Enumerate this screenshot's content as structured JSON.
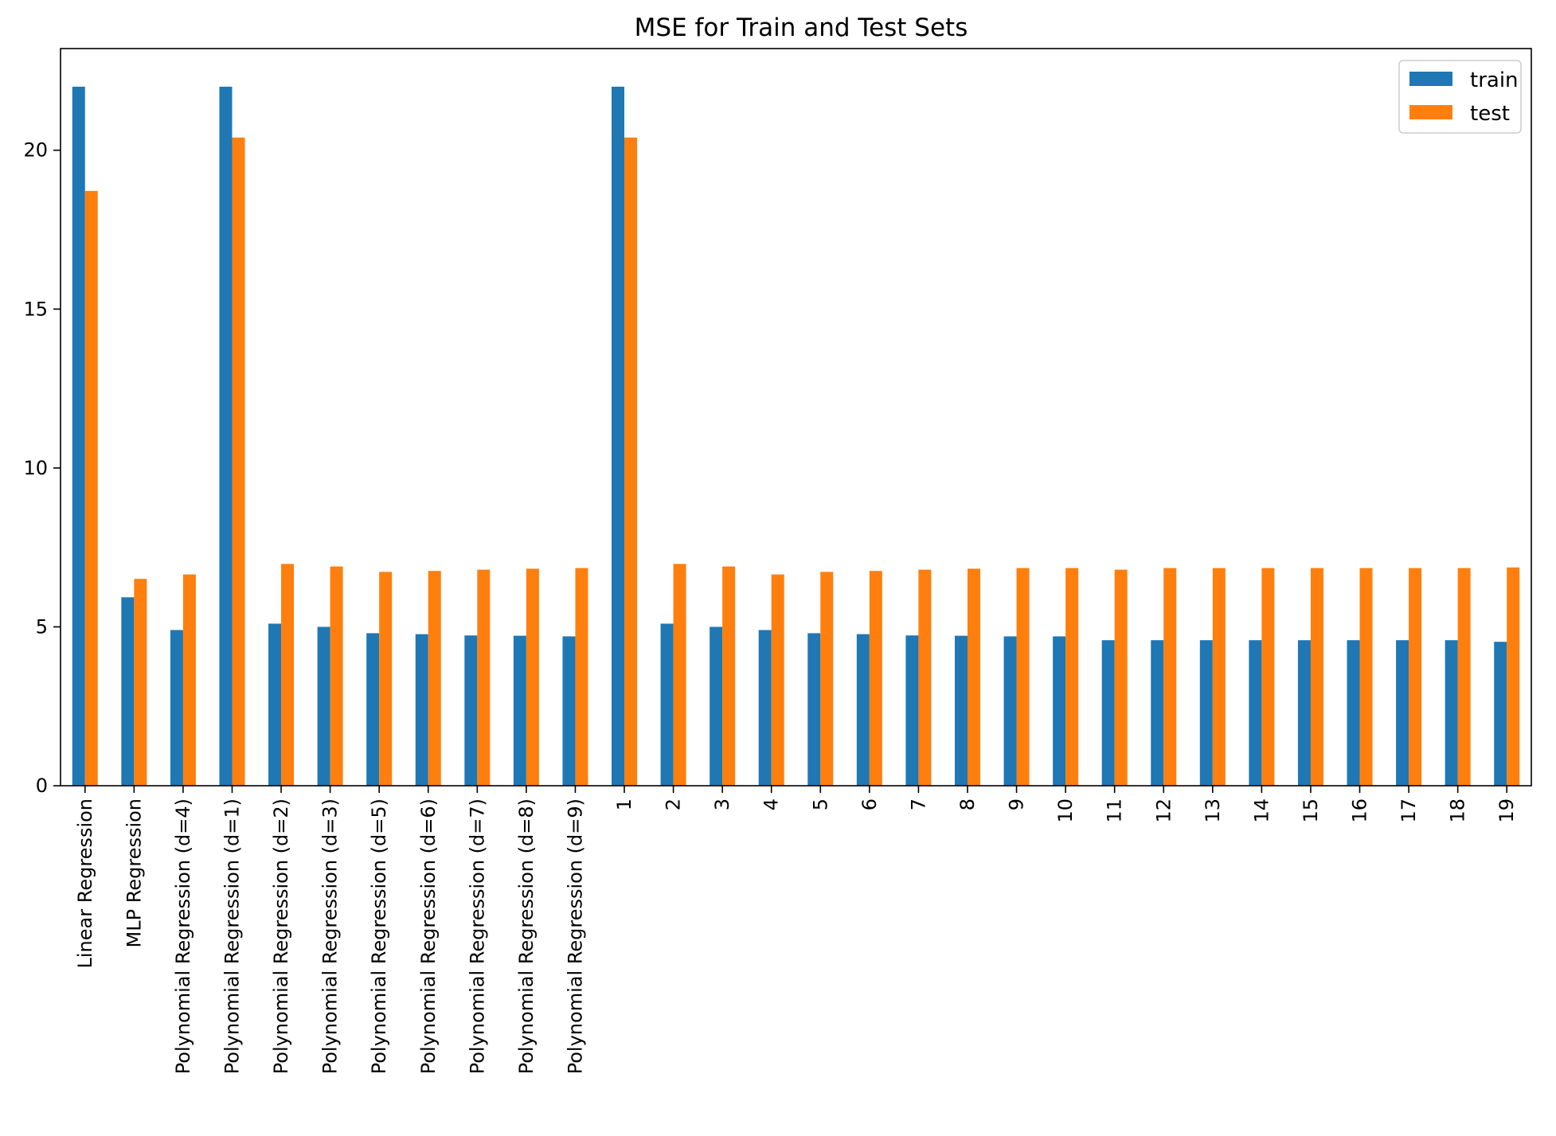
{
  "chart_data": {
    "type": "bar",
    "title": "MSE for Train and Test Sets",
    "xlabel": "",
    "ylabel": "",
    "ylim": [
      0,
      23.2
    ],
    "yticks": [
      0,
      5,
      10,
      15,
      20
    ],
    "grid": false,
    "legend_position": "top-right",
    "categories": [
      "Linear Regression",
      "MLP Regression",
      "Polynomial Regression (d=4)",
      "Polynomial Regression (d=1)",
      "Polynomial Regression (d=2)",
      "Polynomial Regression (d=3)",
      "Polynomial Regression (d=5)",
      "Polynomial Regression (d=6)",
      "Polynomial Regression (d=7)",
      "Polynomial Regression (d=8)",
      "Polynomial Regression (d=9)",
      "1",
      "2",
      "3",
      "4",
      "5",
      "6",
      "7",
      "8",
      "9",
      "10",
      "11",
      "12",
      "13",
      "14",
      "15",
      "16",
      "17",
      "18",
      "19"
    ],
    "series": [
      {
        "name": "train",
        "color": "#1f77b4",
        "values": [
          22.0,
          5.93,
          4.9,
          22.0,
          5.1,
          5.0,
          4.8,
          4.77,
          4.73,
          4.72,
          4.7,
          22.0,
          5.1,
          5.0,
          4.9,
          4.8,
          4.77,
          4.73,
          4.72,
          4.7,
          4.7,
          4.58,
          4.58,
          4.58,
          4.58,
          4.58,
          4.58,
          4.58,
          4.58,
          4.53
        ]
      },
      {
        "name": "test",
        "color": "#ff7f0e",
        "values": [
          18.72,
          6.51,
          6.65,
          20.4,
          6.98,
          6.9,
          6.73,
          6.76,
          6.8,
          6.83,
          6.85,
          20.4,
          6.98,
          6.9,
          6.65,
          6.73,
          6.76,
          6.8,
          6.83,
          6.85,
          6.85,
          6.8,
          6.85,
          6.85,
          6.85,
          6.85,
          6.85,
          6.85,
          6.85,
          6.87
        ]
      }
    ]
  }
}
